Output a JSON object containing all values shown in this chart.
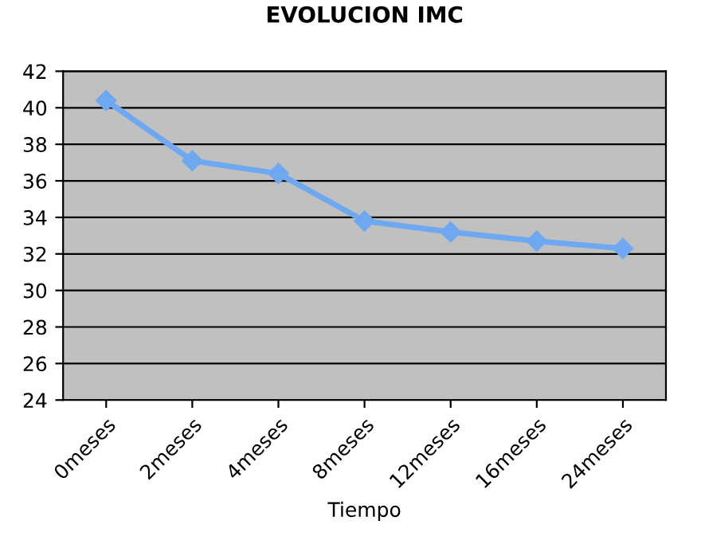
{
  "chart_data": {
    "type": "line",
    "title": "EVOLUCION IMC",
    "xlabel": "Tiempo",
    "categories": [
      "0meses",
      "2meses",
      "4meses",
      "8meses",
      "12meses",
      "16meses",
      "24meses"
    ],
    "series": [
      {
        "color": "#6ea8f0",
        "values": [
          40.4,
          37.1,
          36.4,
          33.8,
          33.2,
          32.7,
          32.3
        ]
      }
    ],
    "ylim": [
      24,
      42
    ],
    "yticks": [
      24,
      26,
      28,
      30,
      32,
      34,
      36,
      38,
      40,
      42
    ],
    "grid": "y",
    "marker": "diamond",
    "line_style": "solid",
    "legend": false
  }
}
